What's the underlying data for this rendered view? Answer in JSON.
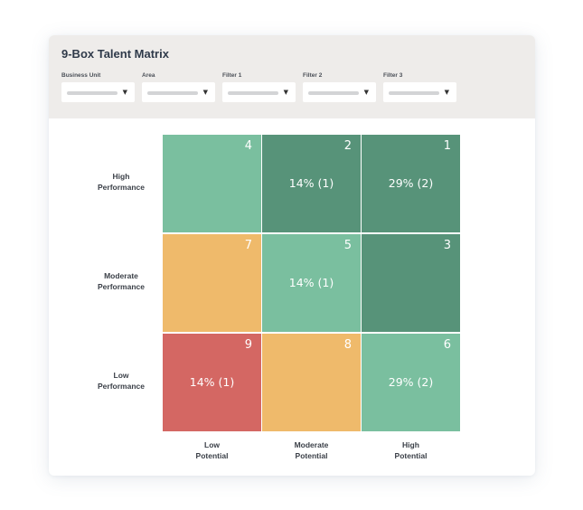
{
  "app": {
    "title": "9-Box Talent Matrix"
  },
  "filters": [
    {
      "label": "Business Unit",
      "value": "",
      "arrow_icon": "caret-down-icon"
    },
    {
      "label": "Area",
      "value": "",
      "arrow_icon": "caret-down-icon"
    },
    {
      "label": "Filter 1",
      "value": "",
      "arrow_icon": "caret-down-icon"
    },
    {
      "label": "Filter 2",
      "value": "",
      "arrow_icon": "caret-down-icon"
    },
    {
      "label": "Filter 3",
      "value": "",
      "arrow_icon": "caret-down-icon"
    }
  ],
  "colors": {
    "dark_green": "#579379",
    "light_green": "#7abf9f",
    "orange": "#efba6b",
    "red": "#d46763"
  },
  "matrix": {
    "row_labels": [
      {
        "line1": "High",
        "line2": "Performance"
      },
      {
        "line1": "Moderate",
        "line2": "Performance"
      },
      {
        "line1": "Low",
        "line2": "Performance"
      }
    ],
    "col_labels": [
      {
        "line1": "Low",
        "line2": "Potential"
      },
      {
        "line1": "Moderate",
        "line2": "Potential"
      },
      {
        "line1": "High",
        "line2": "Potential"
      }
    ],
    "cells": [
      {
        "number": "4",
        "value": "",
        "color": "#7abf9f"
      },
      {
        "number": "2",
        "value": "14% (1)",
        "color": "#579379"
      },
      {
        "number": "1",
        "value": "29% (2)",
        "color": "#579379"
      },
      {
        "number": "7",
        "value": "",
        "color": "#efba6b"
      },
      {
        "number": "5",
        "value": "14% (1)",
        "color": "#7abf9f"
      },
      {
        "number": "3",
        "value": "",
        "color": "#579379"
      },
      {
        "number": "9",
        "value": "14% (1)",
        "color": "#d46763"
      },
      {
        "number": "8",
        "value": "",
        "color": "#efba6b"
      },
      {
        "number": "6",
        "value": "29% (2)",
        "color": "#7abf9f"
      }
    ]
  }
}
